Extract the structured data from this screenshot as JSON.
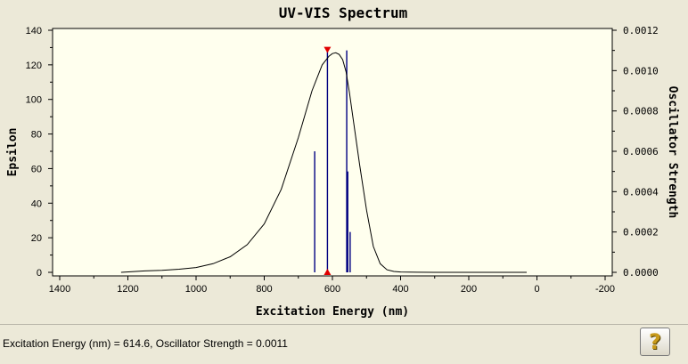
{
  "status": {
    "readout": "Excitation Energy (nm) = 614.6, Oscillator Strength = 0.0011"
  },
  "help_button": {
    "label": "?",
    "icon": "question-mark-icon"
  },
  "chart_data": {
    "type": "line",
    "title": "UV-VIS Spectrum",
    "xlabel": "Excitation Energy (nm)",
    "ylabel": "Epsilon",
    "y2label": "Oscillator Strength",
    "xlim": [
      1400,
      -200
    ],
    "ylim": [
      0,
      140
    ],
    "y2lim": [
      0,
      0.0012
    ],
    "x_ticks": [
      1400,
      1200,
      1000,
      800,
      600,
      400,
      200,
      0,
      -200
    ],
    "x_tick_labels": [
      "1400",
      "1200",
      "1000",
      "800",
      "600",
      "400",
      "200",
      "0",
      "-200"
    ],
    "y_ticks": [
      0,
      20,
      40,
      60,
      80,
      100,
      120,
      140
    ],
    "y_tick_labels": [
      "0",
      "20",
      "40",
      "60",
      "80",
      "100",
      "120",
      "140"
    ],
    "y2_ticks": [
      0,
      0.0002,
      0.0004,
      0.0006,
      0.0008,
      0.001,
      0.0012
    ],
    "y2_tick_labels": [
      "0.0000",
      "0.0002",
      "0.0004",
      "0.0006",
      "0.0008",
      "0.0010",
      "0.0012"
    ],
    "curve": {
      "color": "#000000",
      "x": [
        1220,
        1150,
        1100,
        1050,
        1000,
        950,
        900,
        850,
        800,
        750,
        700,
        660,
        630,
        610,
        600,
        590,
        580,
        570,
        560,
        550,
        540,
        520,
        500,
        480,
        460,
        440,
        420,
        400,
        350,
        300,
        200,
        100,
        30
      ],
      "y": [
        0,
        0.8,
        1.2,
        1.8,
        2.8,
        5,
        9,
        16,
        28,
        48,
        78,
        105,
        120,
        125,
        126.5,
        127,
        126,
        123,
        116,
        104,
        90,
        62,
        36,
        15,
        5,
        1.5,
        0.5,
        0.2,
        0.05,
        0,
        0,
        0,
        0
      ]
    },
    "sticks": {
      "color": "#000080",
      "x": [
        652,
        614.6,
        558,
        555,
        548
      ],
      "y": [
        0.0006,
        0.0011,
        0.0011,
        0.0005,
        0.0002
      ]
    },
    "marker": {
      "x": 614.6,
      "y": 0.0011,
      "color": "#e00000"
    },
    "grid": false,
    "plot_background": "#ffffee"
  }
}
